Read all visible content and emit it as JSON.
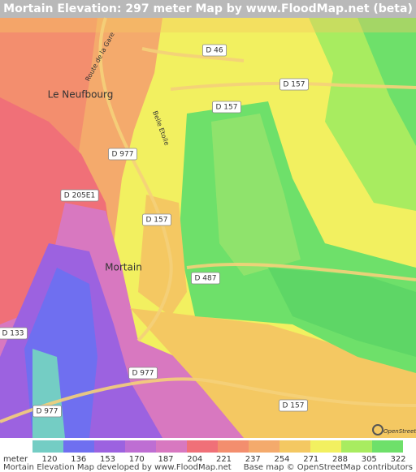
{
  "header": {
    "title": "Mortain Elevation: 297 meter Map by www.FloodMap.net (beta)"
  },
  "map": {
    "places": [
      "Le Neufbourg",
      "Mortain"
    ],
    "roads": [
      "D 46",
      "D 157",
      "D 157",
      "D 977",
      "D 205E1",
      "D 157",
      "D 487",
      "D 133",
      "D 977",
      "D 977",
      "D 157"
    ],
    "streets": [
      "Route de la Gare",
      "Belle Etoile"
    ],
    "attribution_logo": "OpenStreetMap"
  },
  "legend": {
    "unit": "meter",
    "values": [
      120,
      136,
      153,
      170,
      187,
      204,
      221,
      237,
      254,
      271,
      288,
      305,
      322
    ],
    "colors": [
      "#74cdc4",
      "#6f6ff0",
      "#9c62e0",
      "#be6ed3",
      "#d878c0",
      "#f07078",
      "#f38e6e",
      "#f4aa6c",
      "#f4c862",
      "#f2f060",
      "#a8ec60",
      "#6ee06a"
    ]
  },
  "footer": {
    "left": "Mortain Elevation Map developed by www.FloodMap.net",
    "right": "Base map © OpenStreetMap contributors"
  }
}
